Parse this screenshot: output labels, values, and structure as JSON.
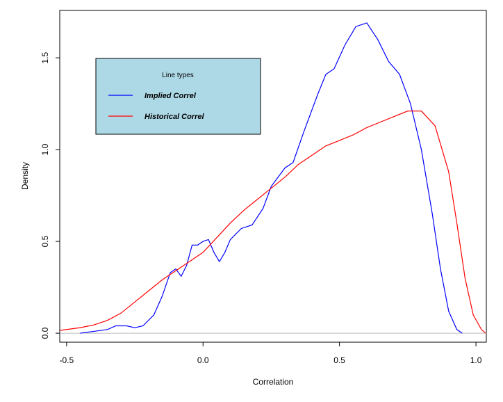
{
  "chart_data": {
    "type": "line",
    "xlabel": "Correlation",
    "ylabel": "Density",
    "xlim": [
      -0.525,
      1.038
    ],
    "ylim": [
      -0.049,
      1.758
    ],
    "xticks": [
      -0.5,
      {
        "value": 0,
        "label": "0.0"
      },
      0.5,
      {
        "value": 1,
        "label": "1.0"
      }
    ],
    "yticks": [
      {
        "value": 0,
        "label": "0.0"
      },
      0.5,
      {
        "value": 1,
        "label": "1.0"
      },
      1.5
    ],
    "zero_line": true,
    "legend_title": "Line types",
    "series": [
      {
        "name": "Implied Correl",
        "color": "#0000ff",
        "x": [
          -0.45,
          -0.4,
          -0.35,
          -0.32,
          -0.28,
          -0.25,
          -0.22,
          -0.18,
          -0.15,
          -0.12,
          -0.1,
          -0.08,
          -0.06,
          -0.04,
          -0.02,
          0.0,
          0.02,
          0.04,
          0.06,
          0.08,
          0.1,
          0.14,
          0.18,
          0.22,
          0.25,
          0.3,
          0.33,
          0.37,
          0.42,
          0.45,
          0.48,
          0.52,
          0.56,
          0.6,
          0.64,
          0.68,
          0.72,
          0.76,
          0.8,
          0.84,
          0.87,
          0.9,
          0.93,
          0.95
        ],
        "values": [
          0,
          0.01,
          0.02,
          0.04,
          0.04,
          0.03,
          0.04,
          0.1,
          0.2,
          0.33,
          0.35,
          0.31,
          0.37,
          0.48,
          0.48,
          0.5,
          0.51,
          0.44,
          0.39,
          0.44,
          0.51,
          0.57,
          0.59,
          0.68,
          0.8,
          0.9,
          0.93,
          1.1,
          1.3,
          1.41,
          1.44,
          1.57,
          1.67,
          1.69,
          1.6,
          1.48,
          1.41,
          1.25,
          1.0,
          0.65,
          0.35,
          0.12,
          0.02,
          0
        ]
      },
      {
        "name": "Historical Correl",
        "color": "#ff0000",
        "x": [
          -0.525,
          -0.45,
          -0.4,
          -0.35,
          -0.3,
          -0.25,
          -0.2,
          -0.15,
          -0.1,
          -0.05,
          0.0,
          0.05,
          0.1,
          0.15,
          0.2,
          0.25,
          0.3,
          0.35,
          0.4,
          0.45,
          0.5,
          0.55,
          0.6,
          0.65,
          0.7,
          0.75,
          0.8,
          0.85,
          0.9,
          0.93,
          0.96,
          0.99,
          1.02,
          1.035
        ],
        "values": [
          0.015,
          0.03,
          0.045,
          0.07,
          0.11,
          0.17,
          0.23,
          0.29,
          0.34,
          0.39,
          0.44,
          0.52,
          0.6,
          0.67,
          0.73,
          0.79,
          0.85,
          0.92,
          0.97,
          1.02,
          1.05,
          1.08,
          1.12,
          1.15,
          1.18,
          1.21,
          1.21,
          1.13,
          0.88,
          0.6,
          0.3,
          0.1,
          0.02,
          0
        ]
      }
    ]
  }
}
